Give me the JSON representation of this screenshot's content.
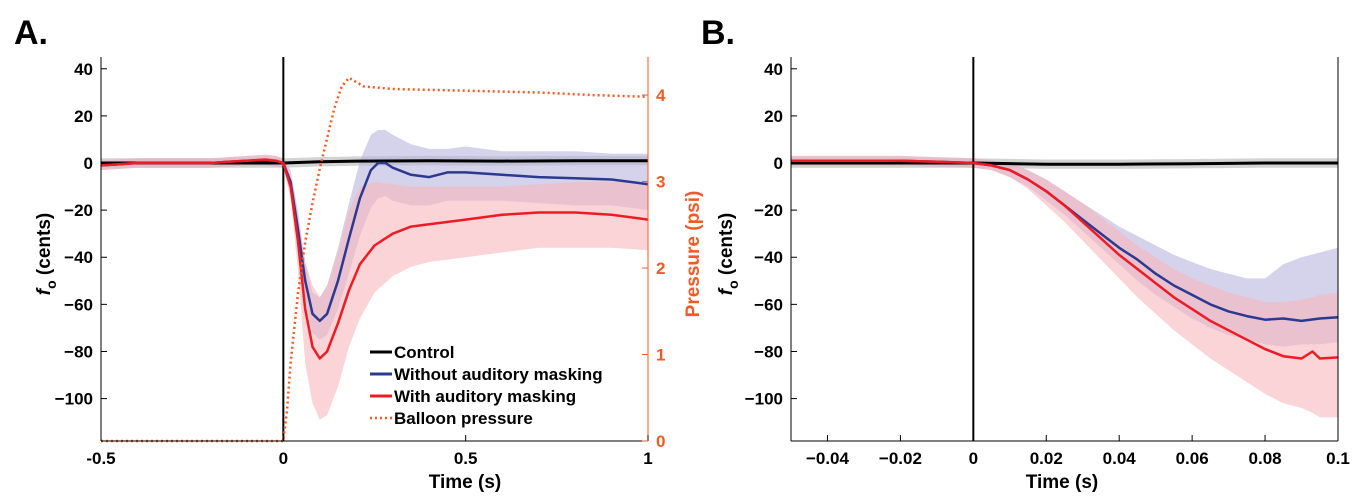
{
  "chart_data": [
    {
      "panel": "A.",
      "type": "line",
      "xlabel": "Time (s)",
      "ylabel_main": "f",
      "ylabel_sub": "o",
      "ylabel_rest": " (cents)",
      "y2label": "Pressure (psi)",
      "xlim": [
        -0.5,
        1.0
      ],
      "ylim": [
        -118,
        45
      ],
      "y2lim": [
        0,
        4.44
      ],
      "xticks": [
        -0.5,
        0,
        0.5,
        1
      ],
      "xtick_labels": [
        "-0.5",
        "0",
        "0.5",
        "1"
      ],
      "yticks": [
        40,
        20,
        0,
        -20,
        -40,
        -60,
        -80,
        -100
      ],
      "ytick_labels": [
        "40",
        "20",
        "0",
        "−20",
        "−40",
        "−60",
        "−80",
        "−100"
      ],
      "y2ticks": [
        0,
        1,
        2,
        3,
        4
      ],
      "y2tick_labels": [
        "0",
        "1",
        "2",
        "3",
        "4"
      ],
      "vline_x": 0,
      "colors": {
        "control": "#000000",
        "without": "#2b3990",
        "without_band": "#b9b5de",
        "with": "#ed1c24",
        "with_band": "#f9b7bd",
        "pressure": "#f15a24",
        "axis_right": "#f15a24"
      },
      "legend": {
        "position": "lower-right",
        "entries": [
          {
            "label": "Control",
            "color": "#000000",
            "style": "solid"
          },
          {
            "label": "Without auditory masking",
            "color": "#2b3990",
            "style": "solid"
          },
          {
            "label": "With auditory masking",
            "color": "#ed1c24",
            "style": "solid"
          },
          {
            "label": "Balloon pressure",
            "color": "#f15a24",
            "style": "dotted"
          }
        ]
      },
      "series": [
        {
          "name": "Control",
          "x": [
            -0.5,
            -0.3,
            -0.1,
            0,
            0.1,
            0.2,
            0.4,
            0.6,
            0.8,
            1.0
          ],
          "y": [
            0,
            0,
            0,
            0,
            0.5,
            0.8,
            1.0,
            0.8,
            1.0,
            1.0
          ],
          "band": 2
        },
        {
          "name": "Without auditory masking",
          "x": [
            -0.5,
            -0.45,
            -0.4,
            -0.3,
            -0.2,
            -0.15,
            -0.1,
            -0.05,
            -0.02,
            0,
            0.02,
            0.04,
            0.06,
            0.08,
            0.1,
            0.12,
            0.15,
            0.18,
            0.21,
            0.24,
            0.26,
            0.28,
            0.3,
            0.35,
            0.4,
            0.45,
            0.5,
            0.6,
            0.7,
            0.8,
            0.9,
            1.0
          ],
          "y": [
            -1,
            -0.5,
            0,
            0,
            0,
            0.5,
            1,
            1.2,
            0.8,
            0,
            -8,
            -28,
            -50,
            -64,
            -67,
            -64,
            -50,
            -32,
            -15,
            -3,
            0,
            0,
            -2,
            -5,
            -6,
            -4,
            -4,
            -5,
            -6,
            -6.5,
            -7,
            -9
          ],
          "lower": [
            -3,
            -2.5,
            -2,
            -2,
            -2,
            -1.5,
            -1,
            -1,
            -1.5,
            -2,
            -13,
            -35,
            -57,
            -72,
            -75,
            -73,
            -62,
            -47,
            -31,
            -19,
            -15,
            -14,
            -16,
            -18,
            -18,
            -16,
            -16,
            -16,
            -17,
            -18,
            -18,
            -20
          ],
          "upper": [
            1,
            1.5,
            2,
            2,
            2,
            2.5,
            3,
            3.5,
            3,
            2,
            -3,
            -20,
            -42,
            -55,
            -57,
            -52,
            -36,
            -17,
            1,
            12,
            14,
            14,
            12,
            8,
            6,
            6,
            7,
            5,
            5,
            5,
            4,
            4
          ]
        },
        {
          "name": "With auditory masking",
          "x": [
            -0.5,
            -0.45,
            -0.4,
            -0.3,
            -0.2,
            -0.15,
            -0.1,
            -0.05,
            -0.02,
            0,
            0.02,
            0.04,
            0.06,
            0.08,
            0.1,
            0.12,
            0.15,
            0.18,
            0.21,
            0.25,
            0.3,
            0.35,
            0.4,
            0.5,
            0.6,
            0.7,
            0.8,
            0.9,
            1.0
          ],
          "y": [
            -1,
            -0.5,
            0,
            0,
            0,
            0.5,
            1,
            1.5,
            1,
            0,
            -10,
            -33,
            -62,
            -78,
            -83,
            -80,
            -68,
            -54,
            -43,
            -35,
            -30,
            -27,
            -26,
            -24,
            -22,
            -21,
            -21,
            -22,
            -24
          ],
          "lower": [
            -3,
            -2.5,
            -2,
            -2,
            -2,
            -1.5,
            -1,
            -0.5,
            -1,
            -2,
            -15,
            -45,
            -85,
            -102,
            -109,
            -107,
            -95,
            -78,
            -66,
            -55,
            -48,
            -44,
            -42,
            -40,
            -38,
            -36,
            -36,
            -36,
            -37
          ],
          "upper": [
            1,
            1.5,
            2,
            2,
            2,
            2.5,
            3,
            3.5,
            3,
            2,
            -5,
            -22,
            -42,
            -52,
            -57,
            -52,
            -38,
            -20,
            -10,
            -8,
            -9,
            -10,
            -10,
            -10,
            -10,
            -9,
            -8,
            -8,
            -8
          ]
        },
        {
          "name": "Balloon pressure",
          "axis": "right",
          "x": [
            -0.5,
            0,
            0.01,
            0.02,
            0.04,
            0.06,
            0.08,
            0.1,
            0.12,
            0.14,
            0.16,
            0.18,
            0.22,
            0.3,
            0.5,
            0.7,
            0.85,
            1.0
          ],
          "y": [
            0,
            0,
            0.35,
            0.9,
            1.7,
            2.3,
            2.75,
            3.15,
            3.5,
            3.85,
            4.1,
            4.2,
            4.1,
            4.07,
            4.05,
            4.03,
            4.0,
            3.98
          ]
        }
      ]
    },
    {
      "panel": "B.",
      "type": "line",
      "xlabel": "Time (s)",
      "ylabel_main": "f",
      "ylabel_sub": "o",
      "ylabel_rest": " (cents)",
      "xlim": [
        -0.05,
        0.1
      ],
      "ylim": [
        -118,
        45
      ],
      "xticks": [
        -0.04,
        -0.02,
        0,
        0.02,
        0.04,
        0.06,
        0.08,
        0.1
      ],
      "xtick_labels": [
        "−0.04",
        "−0.02",
        "0",
        "0.02",
        "0.04",
        "0.06",
        "0.08",
        "0.1"
      ],
      "yticks": [
        40,
        20,
        0,
        -20,
        -40,
        -60,
        -80,
        -100
      ],
      "ytick_labels": [
        "40",
        "20",
        "0",
        "−20",
        "−40",
        "−60",
        "−80",
        "−100"
      ],
      "vline_x": 0,
      "series": [
        {
          "name": "Control",
          "x": [
            -0.05,
            -0.02,
            0,
            0.02,
            0.04,
            0.06,
            0.08,
            0.1
          ],
          "y": [
            0,
            0,
            0,
            -0.5,
            -0.5,
            -0.3,
            0,
            0
          ],
          "band": 2
        },
        {
          "name": "Without auditory masking",
          "x": [
            -0.05,
            -0.04,
            -0.02,
            -0.01,
            0,
            0.005,
            0.01,
            0.015,
            0.02,
            0.025,
            0.03,
            0.035,
            0.04,
            0.045,
            0.05,
            0.055,
            0.06,
            0.065,
            0.07,
            0.075,
            0.08,
            0.085,
            0.09,
            0.095,
            0.1
          ],
          "y": [
            1,
            1,
            1,
            0.5,
            0,
            -1,
            -3,
            -7,
            -12,
            -18,
            -24,
            -30,
            -36,
            -41,
            -47,
            -52,
            -56,
            -60,
            -63,
            -65,
            -66.5,
            -66,
            -67,
            -66,
            -65.5
          ],
          "lower": [
            -1,
            -1,
            -1,
            -1.5,
            -2,
            -3,
            -6,
            -10,
            -16,
            -22,
            -29,
            -36,
            -43,
            -50,
            -56,
            -61,
            -66,
            -70,
            -73,
            -75,
            -77,
            -78,
            -77,
            -77,
            -76
          ],
          "upper": [
            3,
            3,
            3,
            2.5,
            2,
            1,
            0,
            -3,
            -7,
            -12,
            -17,
            -22,
            -27,
            -31,
            -35,
            -39,
            -42,
            -45,
            -47,
            -49,
            -49,
            -43,
            -40,
            -38,
            -36
          ]
        },
        {
          "name": "With auditory masking",
          "x": [
            -0.05,
            -0.04,
            -0.02,
            -0.01,
            0,
            0.005,
            0.01,
            0.015,
            0.02,
            0.025,
            0.03,
            0.035,
            0.04,
            0.045,
            0.05,
            0.055,
            0.06,
            0.065,
            0.07,
            0.075,
            0.08,
            0.085,
            0.09,
            0.093,
            0.095,
            0.1
          ],
          "y": [
            1,
            1,
            1,
            0.5,
            0,
            -1,
            -3,
            -7,
            -12,
            -18,
            -25,
            -32,
            -39,
            -45,
            -51,
            -57,
            -62,
            -67,
            -71,
            -75,
            -79,
            -82,
            -83,
            -80,
            -83,
            -82.5
          ],
          "lower": [
            -1,
            -1,
            -1,
            -1.5,
            -2,
            -3,
            -6,
            -11,
            -18,
            -25,
            -33,
            -41,
            -49,
            -57,
            -64,
            -71,
            -77,
            -83,
            -88,
            -93,
            -98,
            -102,
            -104,
            -106,
            -108,
            -108
          ],
          "upper": [
            3,
            3,
            3,
            2.5,
            2,
            1,
            0,
            -3,
            -7,
            -12,
            -17,
            -23,
            -29,
            -35,
            -40,
            -45,
            -49,
            -52,
            -55,
            -57,
            -59,
            -59,
            -58,
            -57,
            -56,
            -55
          ]
        }
      ]
    }
  ]
}
